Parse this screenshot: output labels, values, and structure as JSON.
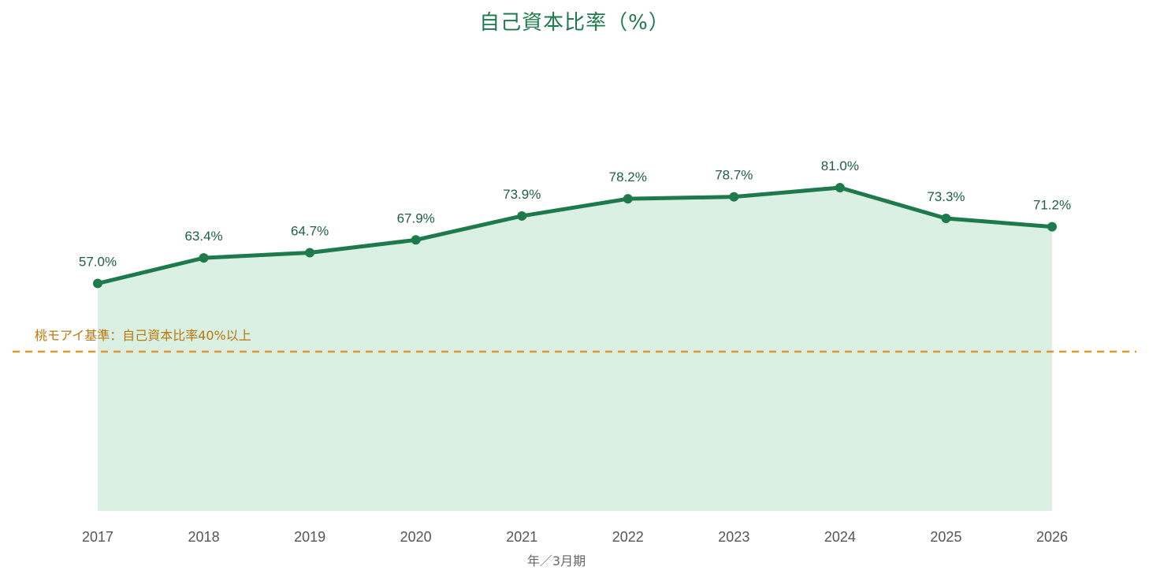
{
  "chart_data": {
    "type": "area",
    "title": "自己資本比率（%）",
    "xlabel": "年／3月期",
    "ylabel": "",
    "categories": [
      "2017",
      "2018",
      "2019",
      "2020",
      "2021",
      "2022",
      "2023",
      "2024",
      "2025",
      "2026"
    ],
    "series": [
      {
        "values": [
          57.0,
          63.4,
          64.7,
          67.9,
          73.9,
          78.2,
          78.7,
          81.0,
          73.3,
          71.2
        ],
        "data_labels": [
          "57.0%",
          "63.4%",
          "64.7%",
          "67.9%",
          "73.9%",
          "78.2%",
          "78.7%",
          "81.0%",
          "73.3%",
          "71.2%"
        ]
      }
    ],
    "reference_line": {
      "value": 40,
      "label": "桃モアイ基準：自己資本比率40%以上",
      "style": "dashed"
    },
    "ylim": [
      0,
      100
    ],
    "grid": false,
    "legend": "none",
    "colors": {
      "line": "#1e7a4c",
      "fill": "#d9f0e2",
      "reference": "#d99a2b",
      "reference_text": "#b9770e",
      "title": "#1e7a4c",
      "tick_text": "#555555",
      "data_label": "#1e5e45"
    }
  }
}
